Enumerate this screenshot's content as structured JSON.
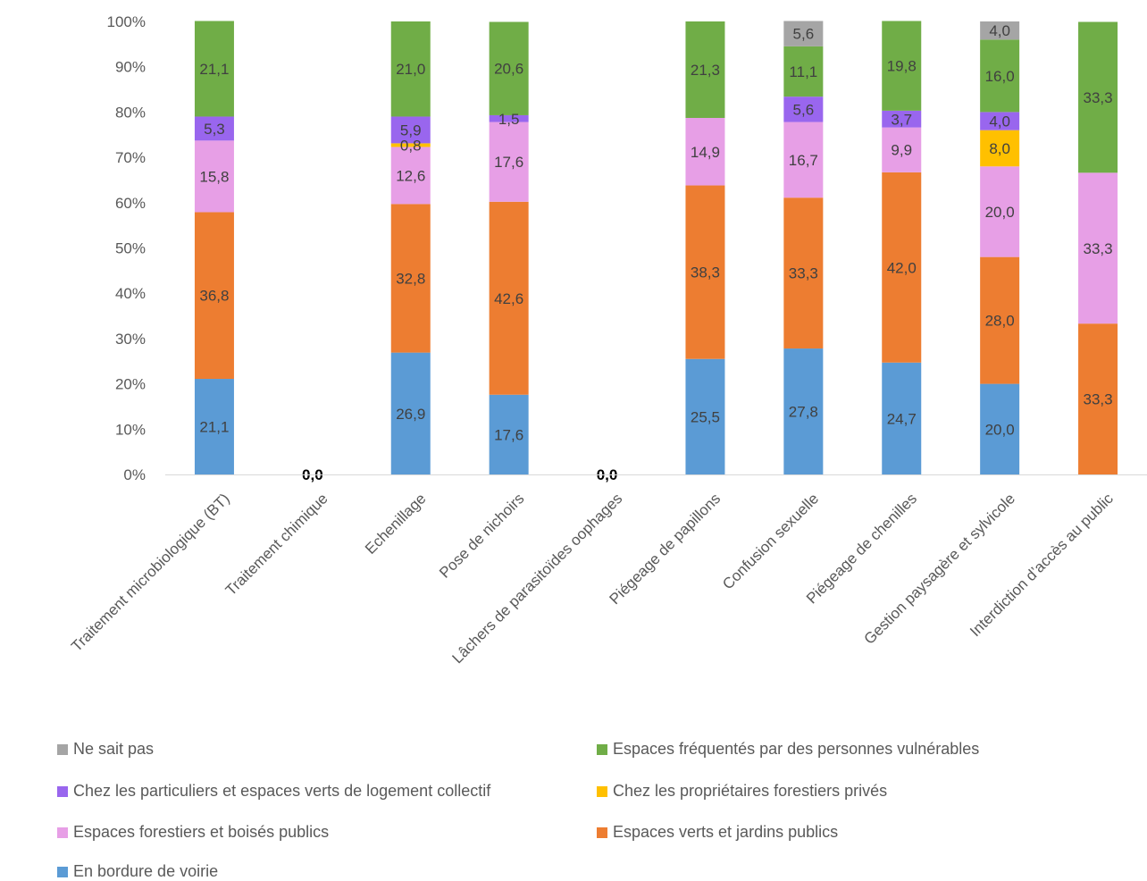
{
  "chart_data": {
    "type": "bar",
    "stacked": true,
    "percent": true,
    "categories": [
      "Traitement microbiologique (BT)",
      "Traitement chimique",
      "Echenillage",
      "Pose de nichoirs",
      "Lâchers de parasitoïdes oophages",
      "Piégeage de papillons",
      "Confusion sexuelle",
      "Piégeage de chenilles",
      "Gestion paysagère et sylvicole",
      "Interdiction d’accès au public"
    ],
    "series": [
      {
        "name": "En bordure de voirie",
        "color": "#5B9BD5",
        "values": [
          21.1,
          0,
          26.9,
          17.6,
          0,
          25.5,
          27.8,
          24.7,
          20.0,
          0
        ]
      },
      {
        "name": "Espaces verts et jardins publics",
        "color": "#ED7D31",
        "values": [
          36.8,
          0,
          32.8,
          42.6,
          0,
          38.3,
          33.3,
          42.0,
          28.0,
          33.3
        ]
      },
      {
        "name": "Espaces forestiers et boisés publics",
        "color": "#E79FE6",
        "values": [
          15.8,
          0,
          12.6,
          17.6,
          0,
          14.9,
          16.7,
          9.9,
          20.0,
          33.3
        ]
      },
      {
        "name": "Chez les propriétaires forestiers privés",
        "color": "#FFC000",
        "values": [
          0,
          0,
          0.8,
          0,
          0,
          0,
          0,
          0,
          8.0,
          0
        ]
      },
      {
        "name": "Chez les particuliers et espaces verts de logement collectif",
        "color": "#9966EE",
        "values": [
          5.3,
          0,
          5.9,
          1.5,
          0,
          0,
          5.6,
          3.7,
          4.0,
          0
        ]
      },
      {
        "name": "Espaces fréquentés par des personnes vulnérables",
        "color": "#70AD47",
        "values": [
          21.1,
          0,
          21.0,
          20.6,
          0,
          21.3,
          11.1,
          19.8,
          16.0,
          33.3
        ]
      },
      {
        "name": "Ne sait pas",
        "color": "#A5A5A5",
        "values": [
          0,
          0,
          0,
          0,
          0,
          0,
          5.6,
          0,
          4.0,
          0
        ]
      }
    ],
    "zero_labels": [
      "",
      "0,0",
      "",
      "",
      "0,0",
      "",
      "",
      "",
      "",
      ""
    ],
    "y_ticks": [
      "0%",
      "10%",
      "20%",
      "30%",
      "40%",
      "50%",
      "60%",
      "70%",
      "80%",
      "90%",
      "100%"
    ],
    "ylim": [
      0,
      100
    ],
    "legend_position": "bottom",
    "grid": false
  },
  "legend": {
    "items": [
      {
        "label": "Ne sait pas",
        "color": "#A5A5A5"
      },
      {
        "label": "Espaces fréquentés par des personnes vulnérables",
        "color": "#70AD47"
      },
      {
        "label": "Chez les particuliers et espaces verts de logement collectif",
        "color": "#9966EE"
      },
      {
        "label": "Chez les propriétaires forestiers privés",
        "color": "#FFC000"
      },
      {
        "label": "Espaces forestiers et boisés publics",
        "color": "#E79FE6"
      },
      {
        "label": "Espaces verts et jardins publics",
        "color": "#ED7D31"
      },
      {
        "label": "En bordure de voirie",
        "color": "#5B9BD5"
      }
    ]
  }
}
